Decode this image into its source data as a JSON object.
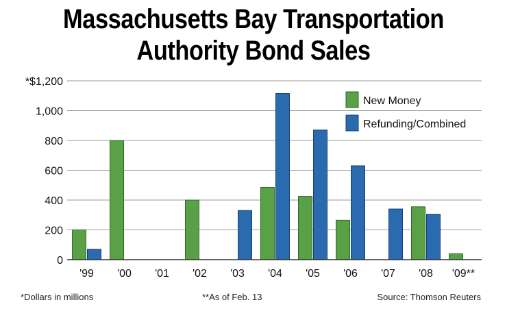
{
  "title_line1": "Massachusetts Bay Transportation",
  "title_line2": "Authority Bond Sales",
  "footnote_left": "*Dollars in millions",
  "footnote_mid": "**As of Feb. 13",
  "source": "Source: Thomson Reuters",
  "colors": {
    "new_money": "#5aa046",
    "refunding": "#2a6bb0",
    "grid": "#9a9a9a",
    "axis": "#333333"
  },
  "chart_data": {
    "type": "bar",
    "categories": [
      "'99",
      "'00",
      "'01",
      "'02",
      "'03",
      "'04",
      "'05",
      "'06",
      "'07",
      "'08",
      "'09**"
    ],
    "series": [
      {
        "name": "New Money",
        "values": [
          200,
          800,
          0,
          400,
          0,
          485,
          425,
          265,
          0,
          355,
          40
        ]
      },
      {
        "name": "Refunding/Combined",
        "values": [
          70,
          0,
          0,
          0,
          330,
          1115,
          870,
          630,
          340,
          305,
          0
        ]
      }
    ],
    "yticks": [
      "0",
      "200",
      "400",
      "600",
      "800",
      "1,000",
      "*$1,200"
    ],
    "ylim": [
      0,
      1200
    ],
    "grid": true,
    "legend_position": "top-right"
  }
}
